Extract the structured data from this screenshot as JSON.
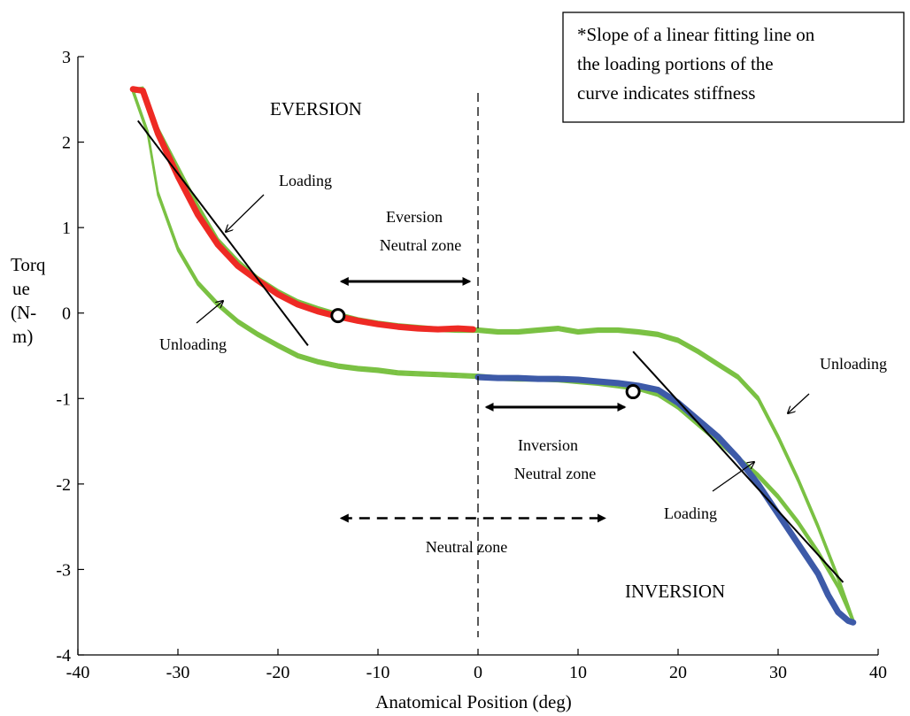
{
  "chart_data": {
    "type": "line",
    "xlabel": "Anatomical Position (deg)",
    "ylabel_lines": [
      "Torq",
      "ue",
      "(N-",
      "m)"
    ],
    "xlim": [
      -40,
      40
    ],
    "ylim": [
      -4,
      3
    ],
    "x_ticks": [
      -40,
      -30,
      -20,
      -10,
      0,
      10,
      20,
      30,
      40
    ],
    "y_ticks": [
      3,
      2,
      1,
      0,
      -1,
      -2,
      -3,
      -4
    ],
    "grid": false,
    "note_lines": [
      "*Slope of a linear fitting line on",
      "the loading portions of the",
      "curve indicates stiffness"
    ],
    "region_labels": {
      "eversion": "EVERSION",
      "inversion": "INVERSION"
    },
    "annotations": {
      "loading_left": "Loading",
      "unloading_left": "Unloading",
      "unloading_right": "Unloading",
      "loading_right": "Loading",
      "eversion_nz": [
        "Eversion",
        "Neutral zone"
      ],
      "inversion_nz": [
        "Inversion",
        "Neutral zone"
      ],
      "neutral_zone": "Neutral zone"
    },
    "colors": {
      "green": "#7ac143",
      "red": "#ee2a24",
      "blue": "#3d5aa8",
      "black": "#000000"
    },
    "series": [
      {
        "color": "green",
        "role": "upper-curve",
        "x": [
          -34.5,
          -33.5,
          -32,
          -30,
          -28,
          -26,
          -24,
          -22,
          -20,
          -18,
          -16,
          -14,
          -12,
          -10,
          -8,
          -6,
          -4,
          -2,
          0,
          2,
          4,
          6,
          8,
          10,
          12,
          14,
          16,
          18,
          20,
          22,
          24,
          26,
          28,
          30,
          32,
          34,
          36,
          37.5
        ],
        "y": [
          2.6,
          2.62,
          2.15,
          1.7,
          1.25,
          0.85,
          0.6,
          0.4,
          0.25,
          0.13,
          0.05,
          -0.02,
          -0.08,
          -0.12,
          -0.15,
          -0.17,
          -0.19,
          -0.2,
          -0.2,
          -0.22,
          -0.22,
          -0.2,
          -0.18,
          -0.22,
          -0.2,
          -0.2,
          -0.22,
          -0.25,
          -0.32,
          -0.45,
          -0.6,
          -0.75,
          -1.0,
          -1.45,
          -1.95,
          -2.5,
          -3.1,
          -3.6
        ]
      },
      {
        "color": "green",
        "role": "lower-curve",
        "x": [
          -34.5,
          -33,
          -32,
          -30,
          -28,
          -26,
          -24,
          -22,
          -20,
          -18,
          -16,
          -14,
          -12,
          -10,
          -8,
          -6,
          -4,
          -2,
          0,
          2,
          4,
          6,
          8,
          10,
          12,
          14,
          16,
          18,
          20,
          22,
          24,
          26,
          28,
          30,
          32,
          34,
          36,
          37.5
        ],
        "y": [
          2.6,
          2.1,
          1.4,
          0.75,
          0.35,
          0.1,
          -0.1,
          -0.25,
          -0.38,
          -0.5,
          -0.57,
          -0.62,
          -0.65,
          -0.67,
          -0.7,
          -0.71,
          -0.72,
          -0.73,
          -0.74,
          -0.76,
          -0.77,
          -0.77,
          -0.78,
          -0.8,
          -0.82,
          -0.85,
          -0.88,
          -0.95,
          -1.1,
          -1.3,
          -1.5,
          -1.7,
          -1.9,
          -2.15,
          -2.45,
          -2.8,
          -3.2,
          -3.6
        ]
      },
      {
        "color": "red",
        "role": "eversion-loading",
        "x": [
          -34.5,
          -33.5,
          -32,
          -30,
          -28,
          -26,
          -24,
          -22,
          -20,
          -18,
          -16,
          -14,
          -12,
          -10,
          -8,
          -6,
          -4,
          -2,
          -0.5
        ],
        "y": [
          2.62,
          2.6,
          2.1,
          1.6,
          1.15,
          0.8,
          0.55,
          0.38,
          0.22,
          0.1,
          0.02,
          -0.04,
          -0.09,
          -0.13,
          -0.16,
          -0.18,
          -0.19,
          -0.18,
          -0.19
        ]
      },
      {
        "color": "blue",
        "role": "inversion-loading",
        "x": [
          0,
          2,
          4,
          6,
          8,
          10,
          12,
          14,
          16,
          18,
          20,
          22,
          24,
          26,
          28,
          30,
          32,
          34,
          35,
          36,
          37,
          37.5
        ],
        "y": [
          -0.75,
          -0.76,
          -0.76,
          -0.77,
          -0.77,
          -0.78,
          -0.8,
          -0.82,
          -0.85,
          -0.9,
          -1.05,
          -1.25,
          -1.45,
          -1.7,
          -2.0,
          -2.35,
          -2.7,
          -3.05,
          -3.3,
          -3.5,
          -3.6,
          -3.62
        ]
      }
    ],
    "fit_lines": [
      {
        "x": [
          -34,
          -17
        ],
        "y": [
          2.25,
          -0.38
        ]
      },
      {
        "x": [
          15.5,
          36.5
        ],
        "y": [
          -0.45,
          -3.15
        ]
      }
    ],
    "markers": [
      {
        "x": -14,
        "y": -0.03
      },
      {
        "x": 15.5,
        "y": -0.92
      }
    ],
    "arrows": {
      "eversion_nz": {
        "x": [
          -14,
          -0.5
        ],
        "y": 0.37
      },
      "inversion_nz": {
        "x": [
          0.5,
          15
        ],
        "y": -1.1
      },
      "neutral_zone": {
        "x": [
          -14,
          13
        ],
        "y": -2.4
      }
    },
    "divider_x": 0
  }
}
